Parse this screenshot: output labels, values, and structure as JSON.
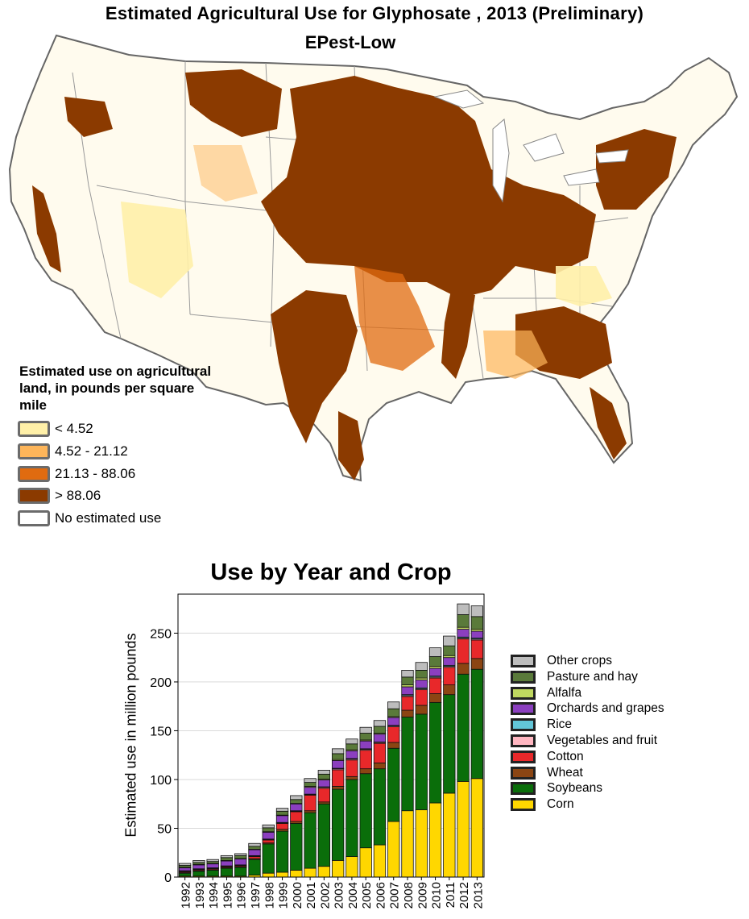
{
  "header": {
    "title": "Estimated Agricultural Use for Glyphosate , 2013 (Preliminary)",
    "subtitle": "EPest-Low"
  },
  "map_legend": {
    "title": "Estimated use on agricultural land, in pounds per square mile",
    "items": [
      {
        "label": "< 4.52",
        "color": "#fff0a8"
      },
      {
        "label": "4.52 - 21.12",
        "color": "#fdb55a"
      },
      {
        "label": "21.13 - 88.06",
        "color": "#e06b10"
      },
      {
        "label": "> 88.06",
        "color": "#8b3a00"
      },
      {
        "label": "No estimated use",
        "color": "#ffffff"
      }
    ]
  },
  "chart_data": {
    "type": "bar",
    "stacked": true,
    "title": "Use by Year and Crop",
    "xlabel": "",
    "ylabel": "Estimated use in million pounds",
    "ylim": [
      0,
      290
    ],
    "yticks": [
      0,
      50,
      100,
      150,
      200,
      250
    ],
    "grid": true,
    "legend_position": "right",
    "categories": [
      "1992",
      "1993",
      "1994",
      "1995",
      "1996",
      "1997",
      "1998",
      "1999",
      "2000",
      "2001",
      "2002",
      "2003",
      "2004",
      "2005",
      "2006",
      "2007",
      "2008",
      "2009",
      "2010",
      "2011",
      "2012",
      "2013"
    ],
    "series": [
      {
        "name": "Corn",
        "color": "#ffd700",
        "values": [
          1,
          1,
          1,
          1,
          1,
          2,
          4,
          5,
          7,
          9,
          11,
          17,
          21,
          30,
          33,
          57,
          68,
          69,
          76,
          86,
          98,
          101
        ]
      },
      {
        "name": "Soybeans",
        "color": "#0a6e0a",
        "values": [
          3,
          5,
          6,
          8,
          9,
          16,
          30,
          42,
          48,
          57,
          64,
          73,
          79,
          76,
          78,
          75,
          96,
          98,
          103,
          101,
          110,
          112
        ]
      },
      {
        "name": "Wheat",
        "color": "#8b4513",
        "values": [
          0.5,
          0.5,
          0.5,
          0.5,
          0.5,
          1,
          1,
          2,
          2,
          2,
          2,
          3,
          3,
          5,
          6,
          6,
          7,
          9,
          9,
          10,
          11,
          11
        ]
      },
      {
        "name": "Cotton",
        "color": "#e8282a",
        "values": [
          1,
          1,
          1,
          1,
          1,
          2,
          3,
          6,
          10,
          16,
          14,
          17,
          17,
          19,
          20,
          16,
          14,
          16,
          16,
          18,
          25,
          19
        ]
      },
      {
        "name": "Vegetables and fruit",
        "color": "#ffb6c1",
        "values": [
          0.5,
          0.5,
          0.5,
          0.5,
          0.5,
          0.5,
          0.5,
          0.5,
          0.5,
          0.5,
          1,
          1,
          1,
          1,
          1,
          1,
          1,
          1,
          1,
          1,
          1,
          1
        ]
      },
      {
        "name": "Rice",
        "color": "#62c6d8",
        "values": [
          0.5,
          0.5,
          0.5,
          0.5,
          0.5,
          0.5,
          0.5,
          0.5,
          0.5,
          0.5,
          0.5,
          0.5,
          0.5,
          0.5,
          0.5,
          0.5,
          1,
          1,
          1,
          1,
          1,
          1
        ]
      },
      {
        "name": "Orchards and grapes",
        "color": "#8b3fbf",
        "values": [
          3,
          4,
          4,
          5,
          6,
          6,
          7,
          7,
          7,
          7,
          7,
          8,
          8,
          8,
          8,
          8,
          8,
          8,
          8,
          8,
          8,
          7
        ]
      },
      {
        "name": "Alfalfa",
        "color": "#c0d860",
        "values": [
          0.5,
          0.5,
          0.5,
          0.5,
          0.5,
          0.5,
          0.5,
          0.5,
          0.5,
          1,
          1,
          1,
          1,
          1,
          1,
          1,
          2,
          2,
          2,
          2,
          2,
          2
        ]
      },
      {
        "name": "Pasture and hay",
        "color": "#5a7a3a",
        "values": [
          2,
          2,
          2,
          3,
          3,
          3,
          4,
          4,
          4,
          4,
          5,
          6,
          6,
          7,
          7,
          8,
          8,
          8,
          10,
          10,
          13,
          13
        ]
      },
      {
        "name": "Other crops",
        "color": "#bdbdbd",
        "values": [
          2,
          2,
          2,
          2,
          2,
          3,
          3,
          3,
          4,
          4,
          4,
          5,
          5,
          6,
          6,
          7,
          7,
          8,
          9,
          10,
          11,
          11
        ]
      }
    ]
  }
}
